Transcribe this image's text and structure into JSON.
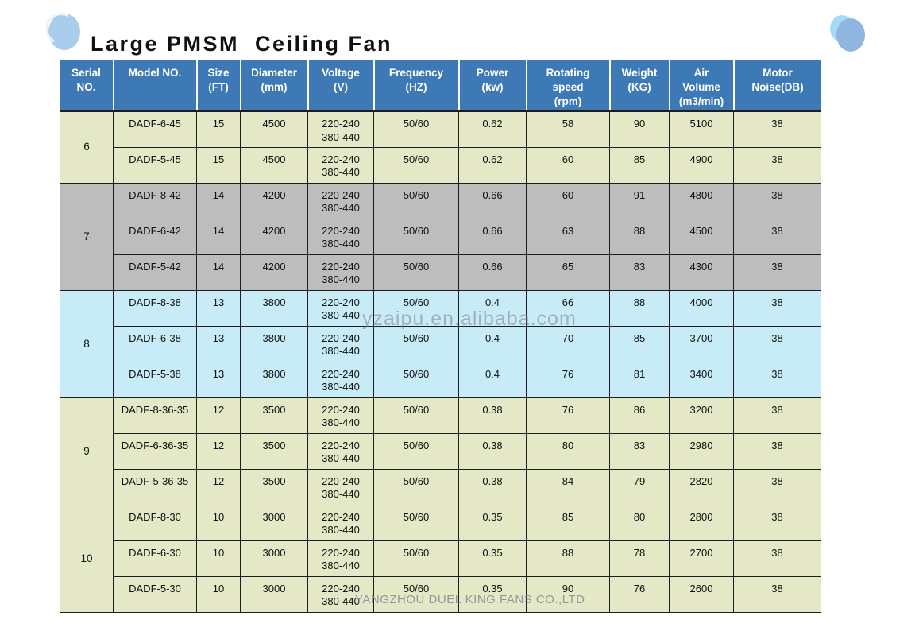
{
  "page": {
    "title": "Large PMSM  Ceiling Fan",
    "watermark_center": "yzaipu.en.alibaba.com",
    "watermark_bottom": "YANGZHOU DUEL KING FANS CO.,LTD"
  },
  "colors": {
    "header_bg": "#3d79b5",
    "header_text": "#ffffff",
    "row_beige": "#e4e8c6",
    "row_gray": "#bdbdbd",
    "row_blue": "#c7ebf7",
    "border": "#1e1e1e",
    "deco_light_blue": "#a9cdec",
    "deco_pale_blue": "#a5daf5",
    "deco_mid_blue": "#8fb6de"
  },
  "table": {
    "columns": [
      {
        "key": "serial",
        "label": "Serial\nNO.",
        "width": 67
      },
      {
        "key": "model",
        "label": "Model  NO.",
        "width": 105
      },
      {
        "key": "size",
        "label": "Size\n(FT)",
        "width": 55
      },
      {
        "key": "diameter",
        "label": "Diameter\n(mm)",
        "width": 85
      },
      {
        "key": "voltage",
        "label": "Voltage\n(V)",
        "width": 83
      },
      {
        "key": "frequency",
        "label": "Frequency\n(HZ)",
        "width": 107
      },
      {
        "key": "power",
        "label": "Power\n(kw)",
        "width": 85
      },
      {
        "key": "speed",
        "label": "Rotating\nspeed\n(rpm)",
        "width": 105
      },
      {
        "key": "weight",
        "label": "Weight\n(KG)",
        "width": 75
      },
      {
        "key": "air",
        "label": "Air\nVolume\n(m3/min)",
        "width": 81
      },
      {
        "key": "noise",
        "label": "Motor\nNoise(DB)",
        "width": 110
      }
    ],
    "row_keys": [
      "model",
      "size",
      "diameter",
      "voltage",
      "frequency",
      "power",
      "speed",
      "weight",
      "air",
      "noise"
    ],
    "groups": [
      {
        "serial": "6",
        "color": "beige",
        "rows": [
          {
            "model": "DADF-6-45",
            "size": "15",
            "diameter": "4500",
            "voltage": "220-240\n380-440",
            "frequency": "50/60",
            "power": "0.62",
            "speed": "58",
            "weight": "90",
            "air": "5100",
            "noise": "38"
          },
          {
            "model": "DADF-5-45",
            "size": "15",
            "diameter": "4500",
            "voltage": "220-240\n380-440",
            "frequency": "50/60",
            "power": "0.62",
            "speed": "60",
            "weight": "85",
            "air": "4900",
            "noise": "38"
          }
        ]
      },
      {
        "serial": "7",
        "color": "gray",
        "rows": [
          {
            "model": "DADF-8-42",
            "size": "14",
            "diameter": "4200",
            "voltage": "220-240\n380-440",
            "frequency": "50/60",
            "power": "0.66",
            "speed": "60",
            "weight": "91",
            "air": "4800",
            "noise": "38"
          },
          {
            "model": "DADF-6-42",
            "size": "14",
            "diameter": "4200",
            "voltage": "220-240\n380-440",
            "frequency": "50/60",
            "power": "0.66",
            "speed": "63",
            "weight": "88",
            "air": "4500",
            "noise": "38"
          },
          {
            "model": "DADF-5-42",
            "size": "14",
            "diameter": "4200",
            "voltage": "220-240\n380-440",
            "frequency": "50/60",
            "power": "0.66",
            "speed": "65",
            "weight": "83",
            "air": "4300",
            "noise": "38"
          }
        ]
      },
      {
        "serial": "8",
        "color": "blue",
        "rows": [
          {
            "model": "DADF-8-38",
            "size": "13",
            "diameter": "3800",
            "voltage": "220-240\n380-440",
            "frequency": "50/60",
            "power": "0.4",
            "speed": "66",
            "weight": "88",
            "air": "4000",
            "noise": "38"
          },
          {
            "model": "DADF-6-38",
            "size": "13",
            "diameter": "3800",
            "voltage": "220-240\n380-440",
            "frequency": "50/60",
            "power": "0.4",
            "speed": "70",
            "weight": "85",
            "air": "3700",
            "noise": "38"
          },
          {
            "model": "DADF-5-38",
            "size": "13",
            "diameter": "3800",
            "voltage": "220-240\n380-440",
            "frequency": "50/60",
            "power": "0.4",
            "speed": "76",
            "weight": "81",
            "air": "3400",
            "noise": "38"
          }
        ]
      },
      {
        "serial": "9",
        "color": "beige",
        "rows": [
          {
            "model": "DADF-8-36-35",
            "size": "12",
            "diameter": "3500",
            "voltage": "220-240\n380-440",
            "frequency": "50/60",
            "power": "0.38",
            "speed": "76",
            "weight": "86",
            "air": "3200",
            "noise": "38"
          },
          {
            "model": "DADF-6-36-35",
            "size": "12",
            "diameter": "3500",
            "voltage": "220-240\n380-440",
            "frequency": "50/60",
            "power": "0.38",
            "speed": "80",
            "weight": "83",
            "air": "2980",
            "noise": "38"
          },
          {
            "model": "DADF-5-36-35",
            "size": "12",
            "diameter": "3500",
            "voltage": "220-240\n380-440",
            "frequency": "50/60",
            "power": "0.38",
            "speed": "84",
            "weight": "79",
            "air": "2820",
            "noise": "38"
          }
        ]
      },
      {
        "serial": "10",
        "color": "beige",
        "rows": [
          {
            "model": "DADF-8-30",
            "size": "10",
            "diameter": "3000",
            "voltage": "220-240\n380-440",
            "frequency": "50/60",
            "power": "0.35",
            "speed": "85",
            "weight": "80",
            "air": "2800",
            "noise": "38"
          },
          {
            "model": "DADF-6-30",
            "size": "10",
            "diameter": "3000",
            "voltage": "220-240\n380-440",
            "frequency": "50/60",
            "power": "0.35",
            "speed": "88",
            "weight": "78",
            "air": "2700",
            "noise": "38"
          },
          {
            "model": "DADF-5-30",
            "size": "10",
            "diameter": "3000",
            "voltage": "220-240\n380-440",
            "frequency": "50/60",
            "power": "0.35",
            "speed": "90",
            "weight": "76",
            "air": "2600",
            "noise": "38"
          }
        ]
      }
    ]
  }
}
